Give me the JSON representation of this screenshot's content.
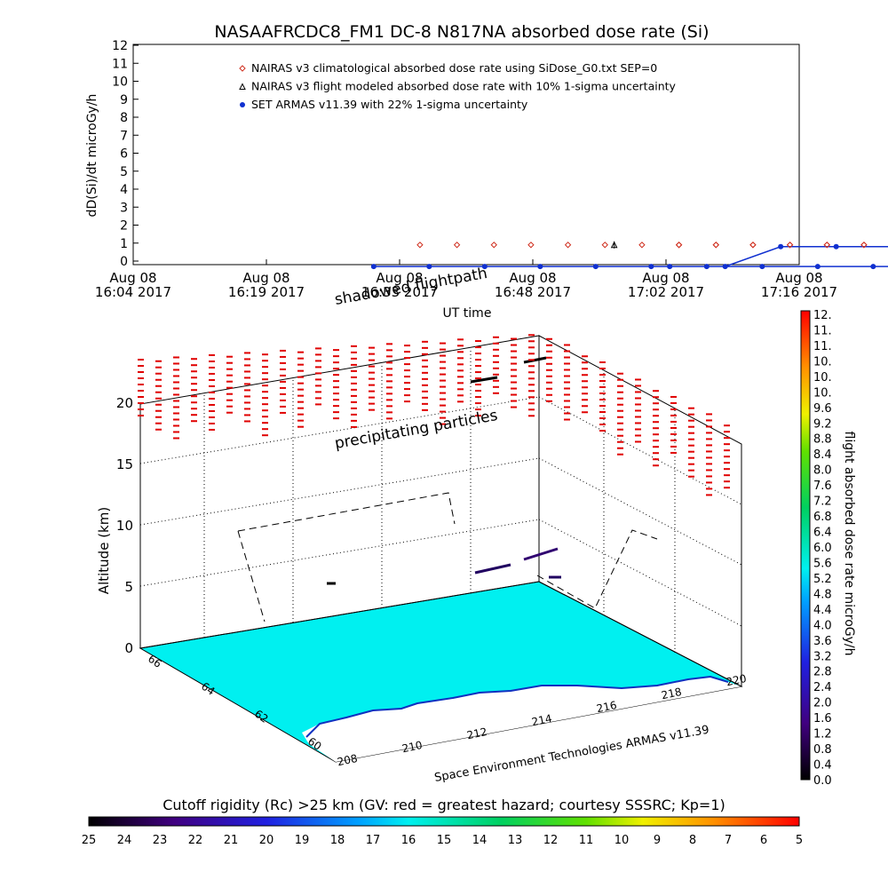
{
  "title": "NASAAFRCDC8_FM1 DC-8   N817NA absorbed dose rate (Si)",
  "chart_data": [
    {
      "type": "scatter",
      "ylabel": "dD(Si)/dt microGy/h",
      "xlabel": "UT time",
      "ylim": [
        0,
        12
      ],
      "yticks": [
        "0",
        "1",
        "2",
        "3",
        "4",
        "5",
        "6",
        "7",
        "8",
        "9",
        "10",
        "11",
        "12"
      ],
      "xticks": [
        {
          "line1": "Aug 08",
          "line2": "16:04 2017"
        },
        {
          "line1": "Aug 08",
          "line2": "16:19 2017"
        },
        {
          "line1": "Aug 08",
          "line2": "16:33 2017"
        },
        {
          "line1": "Aug 08",
          "line2": "16:48 2017"
        },
        {
          "line1": "Aug 08",
          "line2": "17:02 2017"
        },
        {
          "line1": "Aug 08",
          "line2": "17:16 2017"
        }
      ],
      "legend": [
        {
          "label": "NAIRAS v3 climatological absorbed dose rate using SiDose_G0.txt SEP=0",
          "color": "#d03020",
          "marker": "diamond"
        },
        {
          "label": "NAIRAS v3 flight modeled absorbed dose rate with 10% 1-sigma uncertainty",
          "color": "#000000",
          "marker": "triangle"
        },
        {
          "label": "SET ARMAS v11.39 with 22% 1-sigma uncertainty",
          "color": "#1030d0",
          "marker": "circle"
        }
      ],
      "series": [
        {
          "name": "NAIRAS v3 climatological absorbed dose rate using SiDose_G0.txt SEP=0",
          "x": [
            16.35,
            16.39,
            16.43,
            16.47,
            16.51,
            16.55,
            16.59,
            16.63,
            16.67,
            16.71,
            16.75,
            16.79,
            16.83,
            16.87,
            16.91,
            16.95,
            16.99,
            17.03,
            17.07,
            17.11,
            17.15,
            17.19,
            17.23,
            17.27,
            17.31,
            17.35,
            17.39,
            17.43,
            17.47,
            17.51,
            17.55,
            17.59,
            17.63,
            17.67,
            17.71,
            17.75,
            17.79,
            17.83,
            17.87,
            17.91,
            17.95,
            17.99,
            18.03,
            18.07,
            18.11,
            18.15
          ],
          "y": [
            0.9,
            0.9,
            0.9,
            0.9,
            0.9,
            0.9,
            0.9,
            0.9,
            0.9,
            0.9,
            0.9,
            0.9,
            0.9,
            0.9,
            0.9,
            0.9,
            0.9,
            0.9,
            0.9,
            0.9,
            0.9,
            0.9,
            0.9,
            0.9,
            0.9,
            0.9,
            0.9,
            0.9,
            0.9,
            0.9,
            0.9,
            0.9,
            0.9,
            0.9,
            0.9,
            0.9,
            0.9,
            0.9,
            0.9,
            0.9,
            0.9,
            0.9,
            0.9,
            0.9,
            0.9,
            0.9
          ]
        },
        {
          "name": "NAIRAS v3 flight modeled absorbed dose rate with 10% 1-sigma uncertainty",
          "x": [
            16.56,
            16.98,
            17.4,
            17.97,
            18.16
          ],
          "y": [
            0.9,
            0.9,
            0.9,
            0.9,
            0.7
          ]
        },
        {
          "name": "SET ARMAS v11.39 with 22% 1-sigma uncertainty",
          "x": [
            16.3,
            16.36,
            16.42,
            16.48,
            16.54,
            16.6,
            16.66,
            16.72,
            16.78,
            16.84,
            16.9,
            16.96,
            17.02,
            17.08,
            17.14,
            17.2,
            17.26,
            17.32,
            17.38,
            17.44,
            17.5,
            17.56,
            17.62,
            17.68,
            17.74,
            17.8,
            17.86,
            17.92,
            17.98,
            18.04,
            18.1,
            18.16
          ],
          "y": [
            -0.3,
            -0.3,
            -0.3,
            -0.3,
            -0.3,
            -0.3,
            -0.3,
            -0.3,
            -0.3,
            -0.3,
            -0.3,
            -0.3,
            -0.3,
            -0.3,
            0.8,
            0.8,
            0.8,
            0.8,
            0.8,
            0.8,
            0.8,
            1.6,
            1.7,
            0.8,
            0.8,
            0.8,
            0.8,
            0.8,
            0.8,
            0.8,
            0.8,
            0.7
          ]
        }
      ]
    },
    {
      "type": "3d-track",
      "zlabel": "Altitude (km)",
      "zticks": [
        "0",
        "5",
        "10",
        "15",
        "20"
      ],
      "lat_ticks": [
        "66",
        "64",
        "62",
        "60"
      ],
      "lon_ticks": [
        "208",
        "210",
        "212",
        "214",
        "216",
        "218",
        "220"
      ],
      "annotations": [
        "shadowed flightpath",
        "precipitating particles",
        "Space Environment Technologies ARMAS v11.39"
      ]
    },
    {
      "type": "colorbar",
      "label": "flight absorbed dose rate microGy/h",
      "ticks": [
        "12.",
        "11.",
        "11.",
        "10.",
        "10.",
        "10.",
        "9.6",
        "9.2",
        "8.8",
        "8.4",
        "8.0",
        "7.6",
        "7.2",
        "6.8",
        "6.4",
        "6.0",
        "5.6",
        "5.2",
        "4.8",
        "4.4",
        "4.0",
        "3.6",
        "3.2",
        "2.8",
        "2.4",
        "2.0",
        "1.6",
        "1.2",
        "0.8",
        "0.4",
        "0.0"
      ]
    },
    {
      "type": "colorbar",
      "label": "Cutoff rigidity (Rc) >25 km (GV: red = greatest hazard; courtesy SSSRC; Kp=1)",
      "ticks": [
        "25",
        "24",
        "23",
        "22",
        "21",
        "20",
        "19",
        "18",
        "17",
        "16",
        "15",
        "14",
        "13",
        "12",
        "11",
        "10",
        "9",
        "8",
        "7",
        "6",
        "5"
      ]
    }
  ]
}
